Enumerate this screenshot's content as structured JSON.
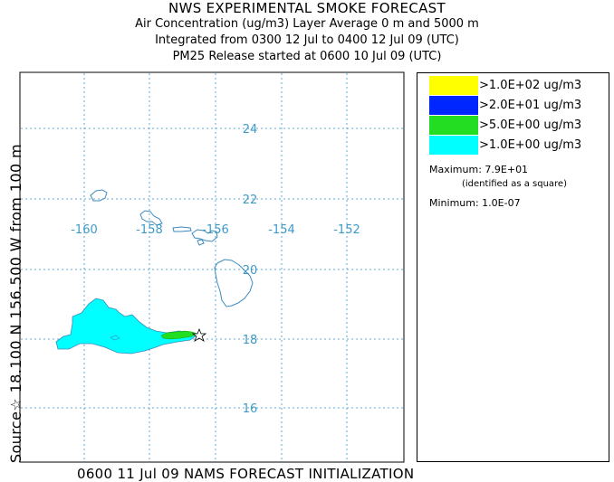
{
  "header": {
    "title": "NWS EXPERIMENTAL SMOKE FORECAST",
    "line2": "Air Concentration (ug/m3) Layer Average    0 m and  5000 m",
    "line3": "Integrated from 0300 12 Jul to 0400 12 Jul 09 (UTC)",
    "line4": "PM25 Release started at 0600 10 Jul 09 (UTC)"
  },
  "side_label": "Source☆ 18.100 N 156.500  W    from  100 m",
  "footer": "0600 11 Jul 09 NAMS FORECAST INITIALIZATION",
  "map": {
    "longitudes": [
      "-160",
      "-158",
      "-156",
      "-154",
      "-152"
    ],
    "latitudes": [
      "24",
      "22",
      "20",
      "18",
      "16"
    ],
    "grid_color": "#5fa8d3",
    "coast_color": "#3d8bbd",
    "label_color": "#3d9ac8",
    "source_marker": "star-icon"
  },
  "legend": {
    "items": [
      {
        "label": ">1.0E+02 ug/m3",
        "color": "#ffff00"
      },
      {
        "label": ">2.0E+01 ug/m3",
        "color": "#0026ff"
      },
      {
        "label": ">5.0E+00 ug/m3",
        "color": "#22dd22"
      },
      {
        "label": ">1.0E+00 ug/m3",
        "color": "#00ffff"
      }
    ],
    "maximum": "Maximum: 7.9E+01",
    "maximum_note": "(identified as a square)",
    "minimum": "Minimum: 1.0E-07"
  }
}
